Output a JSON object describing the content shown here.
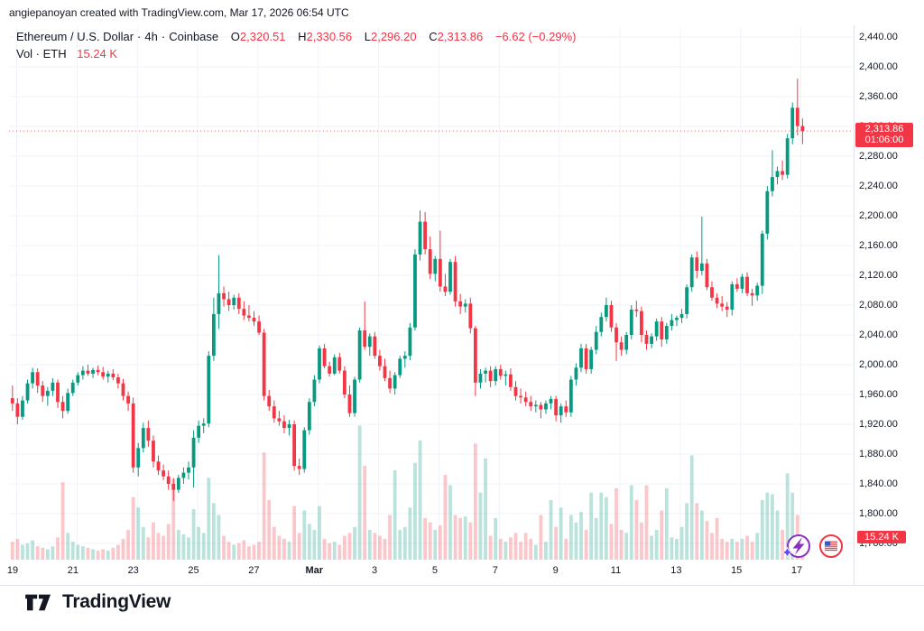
{
  "attribution": "angiepanoyan created with TradingView.com, Mar 17, 2026 06:54 UTC",
  "legend": {
    "symbol_title": "Ethereum / U.S. Dollar",
    "dot": "·",
    "interval": "4h",
    "exchange": "Coinbase",
    "o_label": "O",
    "o_value": "2,320.51",
    "h_label": "H",
    "h_value": "2,330.56",
    "l_label": "L",
    "l_value": "2,296.20",
    "c_label": "C",
    "c_value": "2,313.86",
    "change": "−6.62 (−0.29%)",
    "vol_label": "Vol · ETH",
    "vol_value": "15.24 K"
  },
  "price_badge": {
    "price": "2,313.86",
    "countdown": "01:06:00"
  },
  "volume_badge": "15.24 K",
  "logo": {
    "wordmark": "TradingView"
  },
  "icons": {
    "left": "lightning-spark-icon",
    "right": "usd-flag-icon"
  },
  "colors": {
    "up": "#089981",
    "down": "#f23645",
    "vol_up": "rgba(8,153,129,0.28)",
    "vol_down": "rgba(242,54,69,0.28)",
    "grid": "#f0f3fa",
    "axis_text": "#131722",
    "accent": "#f23645",
    "icon_purple": "#8c2fc7",
    "icon_blue": "#3a57c9"
  },
  "price_axis_labels": [
    "2,440.00",
    "2,400.00",
    "2,360.00",
    "2,320.00",
    "2,280.00",
    "2,240.00",
    "2,200.00",
    "2,160.00",
    "2,120.00",
    "2,080.00",
    "2,040.00",
    "2,000.00",
    "1,960.00",
    "1,920.00",
    "1,880.00",
    "1,840.00",
    "1,800.00",
    "1,760.00"
  ],
  "time_axis_labels": [
    {
      "t": "19",
      "bold": false
    },
    {
      "t": "21",
      "bold": false
    },
    {
      "t": "23",
      "bold": false
    },
    {
      "t": "25",
      "bold": false
    },
    {
      "t": "27",
      "bold": false
    },
    {
      "t": "Mar",
      "bold": true
    },
    {
      "t": "3",
      "bold": false
    },
    {
      "t": "5",
      "bold": false
    },
    {
      "t": "7",
      "bold": false
    },
    {
      "t": "9",
      "bold": false
    },
    {
      "t": "11",
      "bold": false
    },
    {
      "t": "13",
      "bold": false
    },
    {
      "t": "15",
      "bold": false
    },
    {
      "t": "17",
      "bold": false
    }
  ],
  "chart_data": {
    "type": "candlestick",
    "title": "Ethereum / U.S. Dollar · 4h · Coinbase",
    "symbol": "ETH/USD",
    "interval": "4h",
    "exchange": "Coinbase",
    "price_axis": {
      "max": 2440,
      "min": 1760,
      "step": 40,
      "grid": true,
      "side": "right"
    },
    "volume_unit_thousands_eth": true,
    "last_price": 2313.86,
    "current_bar": {
      "o": 2320.51,
      "h": 2330.56,
      "l": 2296.2,
      "c": 2313.86,
      "change": -6.62,
      "change_pct": -0.29,
      "vol_k": 15.24
    },
    "bars_note": "[open,high,low,close,volume_in_K] 4h bars, Feb 19 - Mar 17, values approximated from chart",
    "bars": [
      [
        1955,
        1972,
        1938,
        1948,
        12
      ],
      [
        1948,
        1955,
        1920,
        1930,
        14
      ],
      [
        1930,
        1958,
        1926,
        1952,
        10
      ],
      [
        1952,
        1980,
        1948,
        1975,
        11
      ],
      [
        1975,
        1996,
        1968,
        1990,
        13
      ],
      [
        1990,
        1995,
        1962,
        1972,
        9
      ],
      [
        1972,
        1978,
        1950,
        1958,
        8
      ],
      [
        1958,
        1970,
        1945,
        1965,
        7
      ],
      [
        1965,
        1982,
        1958,
        1976,
        9
      ],
      [
        1976,
        1980,
        1942,
        1950,
        15
      ],
      [
        1950,
        1958,
        1928,
        1938,
        52
      ],
      [
        1938,
        1968,
        1934,
        1962,
        18
      ],
      [
        1962,
        1980,
        1958,
        1976,
        12
      ],
      [
        1976,
        1990,
        1972,
        1986,
        10
      ],
      [
        1986,
        1998,
        1980,
        1992,
        9
      ],
      [
        1992,
        2000,
        1985,
        1988,
        8
      ],
      [
        1988,
        1996,
        1982,
        1993,
        7
      ],
      [
        1993,
        1999,
        1986,
        1990,
        6
      ],
      [
        1990,
        1997,
        1980,
        1984,
        7
      ],
      [
        1984,
        1992,
        1976,
        1988,
        6
      ],
      [
        1988,
        1994,
        1979,
        1983,
        8
      ],
      [
        1983,
        1988,
        1968,
        1975,
        10
      ],
      [
        1975,
        1981,
        1952,
        1958,
        14
      ],
      [
        1958,
        1964,
        1938,
        1948,
        20
      ],
      [
        1948,
        1956,
        1855,
        1862,
        42
      ],
      [
        1862,
        1895,
        1850,
        1888,
        35
      ],
      [
        1888,
        1922,
        1882,
        1915,
        22
      ],
      [
        1915,
        1925,
        1890,
        1898,
        15
      ],
      [
        1898,
        1905,
        1862,
        1870,
        25
      ],
      [
        1870,
        1878,
        1852,
        1858,
        18
      ],
      [
        1858,
        1866,
        1845,
        1850,
        16
      ],
      [
        1850,
        1858,
        1832,
        1840,
        24
      ],
      [
        1840,
        1848,
        1817,
        1832,
        54
      ],
      [
        1832,
        1852,
        1828,
        1848,
        20
      ],
      [
        1848,
        1862,
        1840,
        1855,
        17
      ],
      [
        1855,
        1870,
        1846,
        1862,
        15
      ],
      [
        1862,
        1912,
        1835,
        1902,
        34
      ],
      [
        1902,
        1925,
        1895,
        1918,
        22
      ],
      [
        1918,
        1928,
        1908,
        1921,
        18
      ],
      [
        1921,
        2018,
        1916,
        2012,
        55
      ],
      [
        2012,
        2090,
        2005,
        2068,
        38
      ],
      [
        2068,
        2147,
        2048,
        2096,
        30
      ],
      [
        2096,
        2105,
        2078,
        2088,
        16
      ],
      [
        2088,
        2098,
        2072,
        2080,
        12
      ],
      [
        2080,
        2094,
        2074,
        2090,
        10
      ],
      [
        2090,
        2096,
        2068,
        2075,
        11
      ],
      [
        2075,
        2085,
        2060,
        2066,
        13
      ],
      [
        2066,
        2080,
        2058,
        2063,
        9
      ],
      [
        2063,
        2072,
        2052,
        2058,
        10
      ],
      [
        2058,
        2066,
        2040,
        2043,
        12
      ],
      [
        2043,
        2048,
        1952,
        1958,
        72
      ],
      [
        1958,
        1966,
        1938,
        1944,
        40
      ],
      [
        1944,
        1952,
        1922,
        1928,
        22
      ],
      [
        1928,
        1938,
        1918,
        1924,
        16
      ],
      [
        1924,
        1932,
        1908,
        1915,
        14
      ],
      [
        1915,
        1926,
        1905,
        1920,
        12
      ],
      [
        1920,
        1925,
        1858,
        1864,
        36
      ],
      [
        1864,
        1874,
        1852,
        1860,
        18
      ],
      [
        1860,
        1916,
        1855,
        1912,
        33
      ],
      [
        1912,
        1955,
        1906,
        1950,
        24
      ],
      [
        1950,
        1986,
        1944,
        1980,
        20
      ],
      [
        1980,
        2026,
        1975,
        2022,
        36
      ],
      [
        2022,
        2028,
        1995,
        1998,
        14
      ],
      [
        1998,
        2004,
        1984,
        1988,
        11
      ],
      [
        1988,
        2014,
        1986,
        2010,
        12
      ],
      [
        2010,
        2016,
        1988,
        1992,
        10
      ],
      [
        1992,
        1998,
        1955,
        1960,
        16
      ],
      [
        1960,
        1972,
        1930,
        1935,
        18
      ],
      [
        1935,
        1984,
        1930,
        1980,
        22
      ],
      [
        1980,
        2050,
        1976,
        2046,
        90
      ],
      [
        2046,
        2085,
        2020,
        2024,
        63
      ],
      [
        2024,
        2042,
        2012,
        2038,
        20
      ],
      [
        2038,
        2044,
        2008,
        2012,
        18
      ],
      [
        2012,
        2020,
        1992,
        1998,
        16
      ],
      [
        1998,
        2008,
        1978,
        1982,
        14
      ],
      [
        1982,
        1992,
        1962,
        1968,
        30
      ],
      [
        1968,
        1990,
        1960,
        1986,
        60
      ],
      [
        1986,
        2012,
        1982,
        2008,
        20
      ],
      [
        2008,
        2018,
        1996,
        2012,
        22
      ],
      [
        2012,
        2056,
        2006,
        2050,
        35
      ],
      [
        2050,
        2155,
        2046,
        2148,
        65
      ],
      [
        2148,
        2207,
        2140,
        2192,
        80
      ],
      [
        2192,
        2205,
        2148,
        2155,
        28
      ],
      [
        2155,
        2172,
        2115,
        2122,
        25
      ],
      [
        2122,
        2146,
        2112,
        2142,
        20
      ],
      [
        2142,
        2180,
        2098,
        2105,
        23
      ],
      [
        2105,
        2122,
        2092,
        2098,
        57
      ],
      [
        2098,
        2142,
        2094,
        2138,
        50
      ],
      [
        2138,
        2146,
        2078,
        2085,
        30
      ],
      [
        2085,
        2095,
        2068,
        2078,
        28
      ],
      [
        2078,
        2088,
        2070,
        2082,
        29
      ],
      [
        2082,
        2090,
        2042,
        2049,
        25
      ],
      [
        2049,
        2052,
        1958,
        1976,
        78
      ],
      [
        1976,
        1994,
        1968,
        1988,
        45
      ],
      [
        1988,
        1996,
        1976,
        1992,
        68
      ],
      [
        1992,
        1998,
        1970,
        1978,
        16
      ],
      [
        1978,
        1998,
        1972,
        1994,
        28
      ],
      [
        1994,
        2000,
        1980,
        1985,
        14
      ],
      [
        1985,
        1992,
        1972,
        1987,
        12
      ],
      [
        1987,
        1995,
        1965,
        1970,
        15
      ],
      [
        1970,
        1978,
        1952,
        1958,
        18
      ],
      [
        1958,
        1968,
        1948,
        1956,
        12
      ],
      [
        1956,
        1964,
        1944,
        1950,
        18
      ],
      [
        1950,
        1958,
        1938,
        1944,
        14
      ],
      [
        1944,
        1952,
        1936,
        1946,
        10
      ],
      [
        1946,
        1950,
        1928,
        1940,
        30
      ],
      [
        1940,
        1952,
        1934,
        1948,
        12
      ],
      [
        1948,
        1958,
        1940,
        1954,
        40
      ],
      [
        1954,
        1958,
        1924,
        1932,
        22
      ],
      [
        1932,
        1948,
        1922,
        1944,
        35
      ],
      [
        1944,
        1952,
        1930,
        1936,
        14
      ],
      [
        1936,
        1985,
        1930,
        1980,
        30
      ],
      [
        1980,
        2002,
        1972,
        1996,
        25
      ],
      [
        1996,
        2028,
        1990,
        2022,
        32
      ],
      [
        2022,
        2028,
        1988,
        1994,
        20
      ],
      [
        1994,
        2024,
        1988,
        2020,
        45
      ],
      [
        2020,
        2052,
        2014,
        2044,
        28
      ],
      [
        2044,
        2070,
        2038,
        2064,
        45
      ],
      [
        2064,
        2090,
        2058,
        2080,
        42
      ],
      [
        2080,
        2086,
        2044,
        2050,
        24
      ],
      [
        2050,
        2056,
        2005,
        2030,
        48
      ],
      [
        2030,
        2038,
        2012,
        2020,
        20
      ],
      [
        2020,
        2044,
        2014,
        2040,
        18
      ],
      [
        2040,
        2080,
        2034,
        2074,
        50
      ],
      [
        2074,
        2086,
        2064,
        2072,
        40
      ],
      [
        2072,
        2078,
        2030,
        2040,
        25
      ],
      [
        2040,
        2046,
        2020,
        2028,
        50
      ],
      [
        2028,
        2042,
        2022,
        2038,
        16
      ],
      [
        2038,
        2062,
        2032,
        2058,
        20
      ],
      [
        2058,
        2064,
        2024,
        2034,
        33
      ],
      [
        2034,
        2056,
        2028,
        2052,
        48
      ],
      [
        2052,
        2068,
        2046,
        2060,
        15
      ],
      [
        2060,
        2066,
        2052,
        2063,
        14
      ],
      [
        2063,
        2075,
        2056,
        2068,
        22
      ],
      [
        2068,
        2108,
        2062,
        2104,
        38
      ],
      [
        2104,
        2148,
        2098,
        2144,
        70
      ],
      [
        2144,
        2152,
        2116,
        2126,
        38
      ],
      [
        2126,
        2199,
        2120,
        2136,
        33
      ],
      [
        2136,
        2142,
        2100,
        2104,
        26
      ],
      [
        2104,
        2112,
        2086,
        2090,
        18
      ],
      [
        2090,
        2096,
        2076,
        2082,
        28
      ],
      [
        2082,
        2092,
        2072,
        2078,
        14
      ],
      [
        2078,
        2084,
        2064,
        2074,
        12
      ],
      [
        2074,
        2112,
        2066,
        2108,
        14
      ],
      [
        2108,
        2116,
        2098,
        2102,
        12
      ],
      [
        2102,
        2122,
        2096,
        2118,
        14
      ],
      [
        2118,
        2124,
        2092,
        2096,
        16
      ],
      [
        2096,
        2102,
        2079,
        2093,
        12
      ],
      [
        2093,
        2110,
        2086,
        2106,
        18
      ],
      [
        2106,
        2180,
        2095,
        2176,
        40
      ],
      [
        2176,
        2240,
        2168,
        2233,
        45
      ],
      [
        2233,
        2288,
        2226,
        2252,
        44
      ],
      [
        2252,
        2266,
        2242,
        2260,
        33
      ],
      [
        2260,
        2274,
        2248,
        2255,
        20
      ],
      [
        2255,
        2310,
        2250,
        2304,
        58
      ],
      [
        2304,
        2352,
        2296,
        2345,
        45
      ],
      [
        2345,
        2384,
        2308,
        2320.5,
        30
      ],
      [
        2320.51,
        2330.56,
        2296.2,
        2313.86,
        15.24
      ]
    ]
  }
}
